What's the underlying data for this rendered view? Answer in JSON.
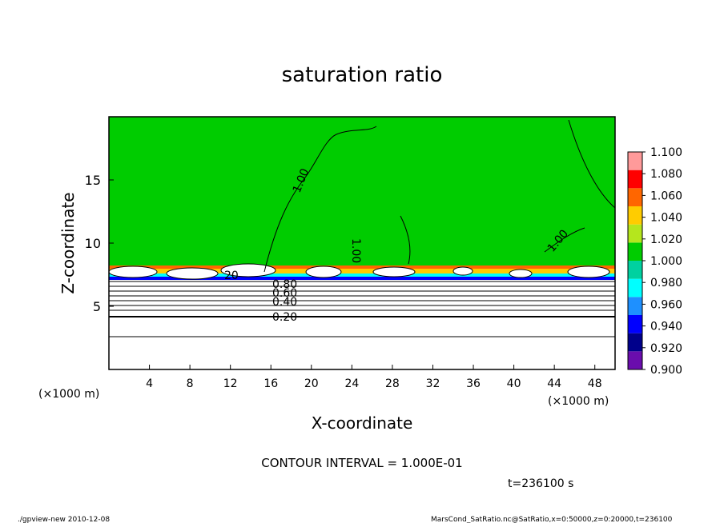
{
  "chart_data": {
    "type": "heatmap",
    "title": "saturation ratio",
    "xlabel": "X-coordinate",
    "ylabel": "Z-coordinate",
    "x_unit": "(×1000 m)",
    "y_unit": "(×1000 m)",
    "xlim": [
      0,
      50
    ],
    "ylim": [
      0,
      20
    ],
    "x_ticks": [
      4,
      8,
      12,
      16,
      20,
      24,
      28,
      32,
      36,
      40,
      44,
      48
    ],
    "y_ticks": [
      5,
      10,
      15
    ],
    "colorbar": {
      "levels": [
        "0.900",
        "0.920",
        "0.940",
        "0.960",
        "0.980",
        "1.000",
        "1.020",
        "1.040",
        "1.060",
        "1.080",
        "1.100"
      ],
      "colors": [
        "#6a0dad",
        "#00008b",
        "#0000ff",
        "#1e90ff",
        "#00ffff",
        "#00d1a0",
        "#00cc00",
        "#b5e61d",
        "#ffcc00",
        "#ff6600",
        "#ff0000",
        "#ff9a9a"
      ]
    },
    "contour_labels": [
      "1.00",
      "1.00",
      "1.00",
      "0.80",
      "0.60",
      "0.40",
      "0.20",
      "20"
    ],
    "contour_interval_text": "CONTOUR INTERVAL = 1.000E-01",
    "time_text": "t=236100 s",
    "colors": {
      "background_field": "#00cc00",
      "contour_line": "#000000"
    }
  },
  "footer": {
    "left": "./gpview-new  2010-12-08",
    "right": "MarsCond_SatRatio.nc@SatRatio,x=0:50000,z=0:20000,t=236100"
  }
}
